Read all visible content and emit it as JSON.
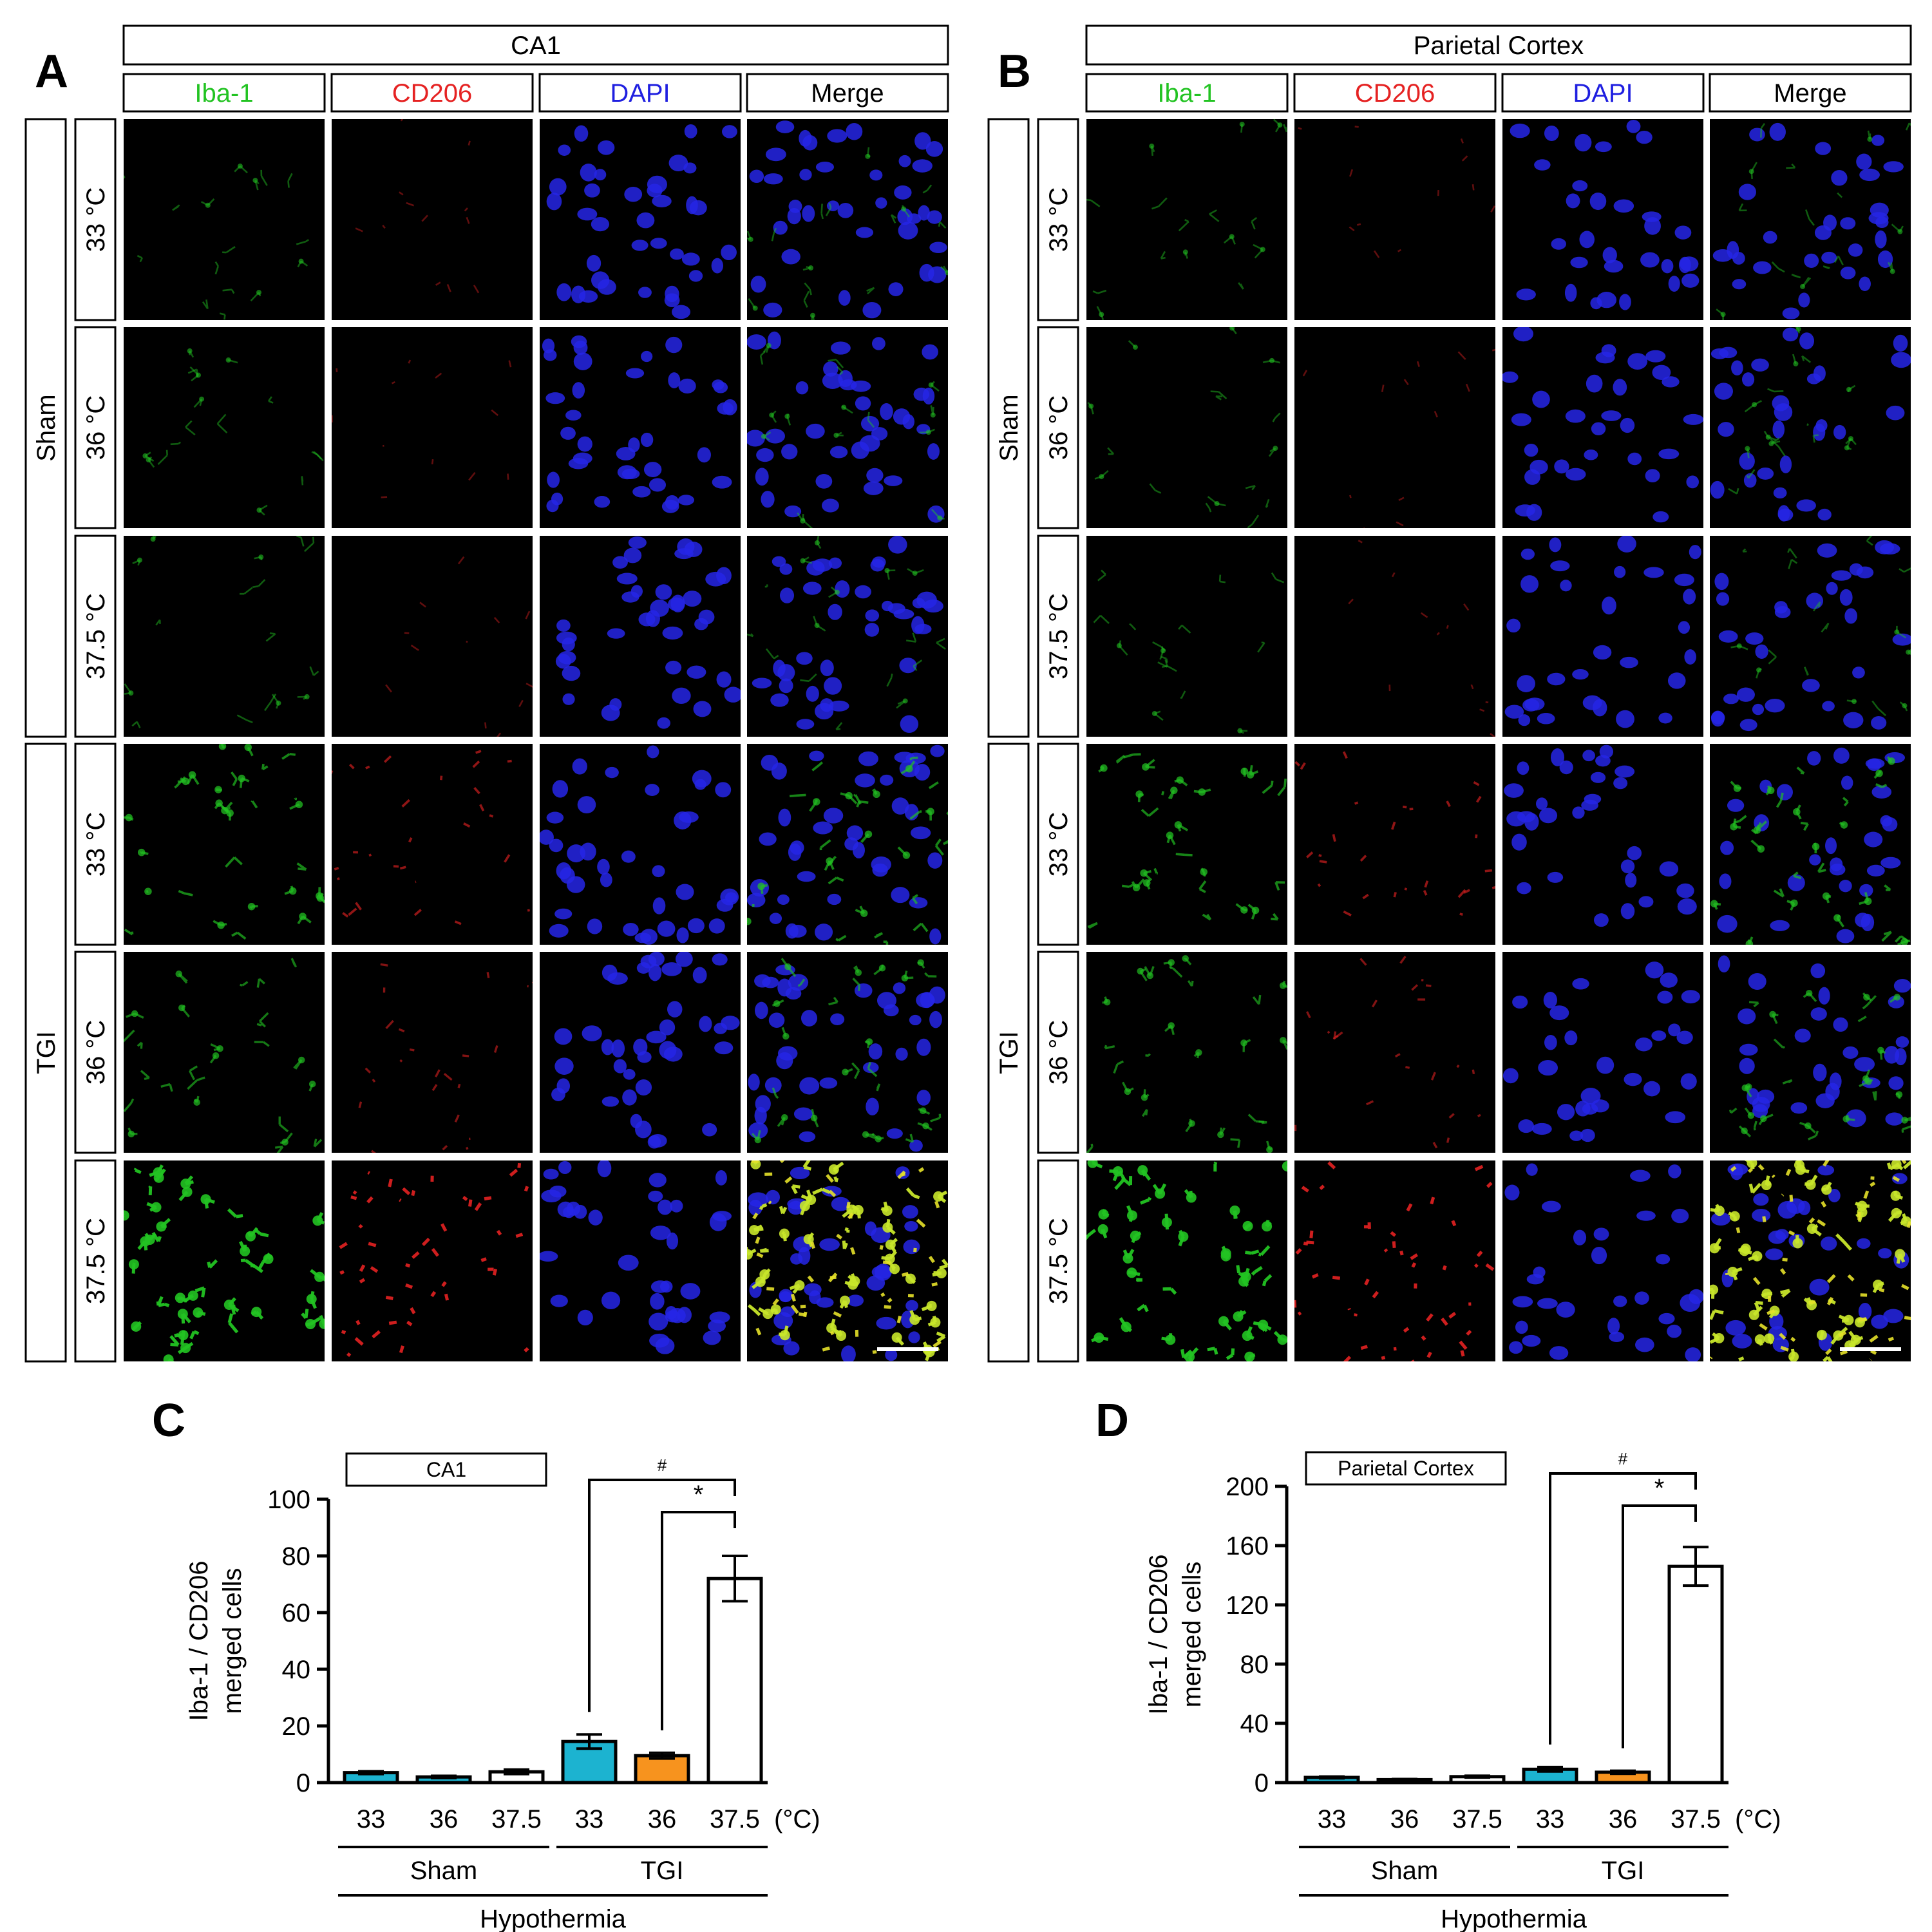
{
  "panels": {
    "A": {
      "letter": "A",
      "region": "CA1",
      "columns": [
        "Iba-1",
        "CD206",
        "DAPI",
        "Merge"
      ],
      "groups": [
        {
          "name": "Sham",
          "rows": [
            "33 °C",
            "36 °C",
            "37.5 °C"
          ]
        },
        {
          "name": "TGI",
          "rows": [
            "33 °C",
            "36 °C",
            "37.5 °C"
          ]
        }
      ]
    },
    "B": {
      "letter": "B",
      "region": "Parietal Cortex",
      "columns": [
        "Iba-1",
        "CD206",
        "DAPI",
        "Merge"
      ],
      "groups": [
        {
          "name": "Sham",
          "rows": [
            "33 °C",
            "36 °C",
            "37.5 °C"
          ]
        },
        {
          "name": "TGI",
          "rows": [
            "33 °C",
            "36 °C",
            "37.5 °C"
          ]
        }
      ]
    }
  },
  "colors": {
    "iba1": "#22c322",
    "cd206": "#e52222",
    "dapi": "#1f1fe0",
    "merge": "#000000",
    "sham_33": "#1cb3d0",
    "tgi_36": "#f7931e",
    "bar_37_5": "#ffffff"
  },
  "chart_data": [
    {
      "letter": "C",
      "type": "bar",
      "legend_box": "CA1",
      "ylabel_line1": "Iba-1 / CD206",
      "ylabel_line2": "merged cells",
      "ylim": [
        0,
        100
      ],
      "yticks": [
        0,
        20,
        40,
        60,
        80,
        100
      ],
      "categories": [
        "33",
        "36",
        "37.5",
        "33",
        "36",
        "37.5"
      ],
      "unit_label": "(°C)",
      "values": [
        3.5,
        2,
        3.8,
        14.5,
        9.5,
        72
      ],
      "errors": [
        0.5,
        0.4,
        0.8,
        2.5,
        1,
        8
      ],
      "groups": [
        {
          "name": "Sham",
          "range": [
            0,
            2
          ]
        },
        {
          "name": "TGI",
          "range": [
            3,
            5
          ]
        }
      ],
      "grand_label": "Hypothermia",
      "significance": [
        {
          "symbol": "#",
          "from": 3,
          "to": 5
        },
        {
          "symbol": "*",
          "from": 4,
          "to": 5
        }
      ]
    },
    {
      "letter": "D",
      "type": "bar",
      "legend_box": "Parietal Cortex",
      "ylabel_line1": "Iba-1 / CD206",
      "ylabel_line2": "merged cells",
      "ylim": [
        0,
        200
      ],
      "yticks": [
        0,
        40,
        80,
        120,
        160,
        200
      ],
      "categories": [
        "33",
        "36",
        "37.5",
        "33",
        "36",
        "37.5"
      ],
      "unit_label": "(°C)",
      "values": [
        3.5,
        2,
        4,
        9,
        7,
        146
      ],
      "errors": [
        0.6,
        0.4,
        0.6,
        1.5,
        1,
        13
      ],
      "groups": [
        {
          "name": "Sham",
          "range": [
            0,
            2
          ]
        },
        {
          "name": "TGI",
          "range": [
            3,
            5
          ]
        }
      ],
      "grand_label": "Hypothermia",
      "significance": [
        {
          "symbol": "#",
          "from": 3,
          "to": 5
        },
        {
          "symbol": "*",
          "from": 4,
          "to": 5
        }
      ]
    }
  ]
}
